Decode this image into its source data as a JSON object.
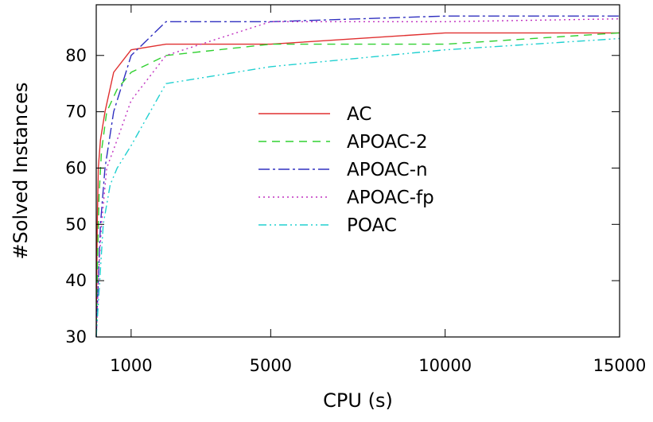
{
  "chart_data": {
    "type": "line",
    "title": "",
    "xlabel": "CPU (s)",
    "ylabel": "#Solved Instances",
    "xlim": [
      0,
      15000
    ],
    "ylim": [
      30,
      89
    ],
    "xticks": [
      1000,
      5000,
      10000,
      15000
    ],
    "yticks": [
      30,
      40,
      50,
      60,
      70,
      80
    ],
    "grid": false,
    "legend_position": "center",
    "series": [
      {
        "name": "AC",
        "color": "#e03030",
        "dash": "",
        "x": [
          0,
          30,
          60,
          120,
          250,
          500,
          1000,
          2000,
          5000,
          10000,
          15000
        ],
        "y": [
          30,
          50,
          60,
          65,
          70,
          77,
          81,
          82,
          82,
          84,
          84
        ]
      },
      {
        "name": "APOAC-2",
        "color": "#30d030",
        "dash": "10,7",
        "x": [
          0,
          40,
          80,
          150,
          300,
          600,
          1000,
          2000,
          5000,
          10000,
          15000
        ],
        "y": [
          30,
          45,
          55,
          63,
          70,
          74,
          77,
          80,
          82,
          82,
          84
        ]
      },
      {
        "name": "APOAC-n",
        "color": "#3030c0",
        "dash": "14,4,3,4",
        "x": [
          0,
          60,
          120,
          250,
          500,
          1000,
          2000,
          5000,
          10000,
          15000
        ],
        "y": [
          30,
          40,
          50,
          60,
          70,
          80,
          86,
          86,
          87,
          87
        ]
      },
      {
        "name": "APOAC-fp",
        "color": "#c030c0",
        "dash": "2,4",
        "x": [
          0,
          60,
          150,
          300,
          600,
          1000,
          2000,
          5000,
          10000,
          15000
        ],
        "y": [
          30,
          40,
          50,
          60,
          65,
          72,
          80,
          86,
          86,
          86.5
        ]
      },
      {
        "name": "POAC",
        "color": "#20d0d0",
        "dash": "10,4,2,4,2,4",
        "x": [
          0,
          100,
          200,
          400,
          600,
          1000,
          2000,
          5000,
          10000,
          15000
        ],
        "y": [
          30,
          40,
          50,
          57,
          60,
          64,
          75,
          78,
          81,
          83
        ]
      }
    ]
  }
}
